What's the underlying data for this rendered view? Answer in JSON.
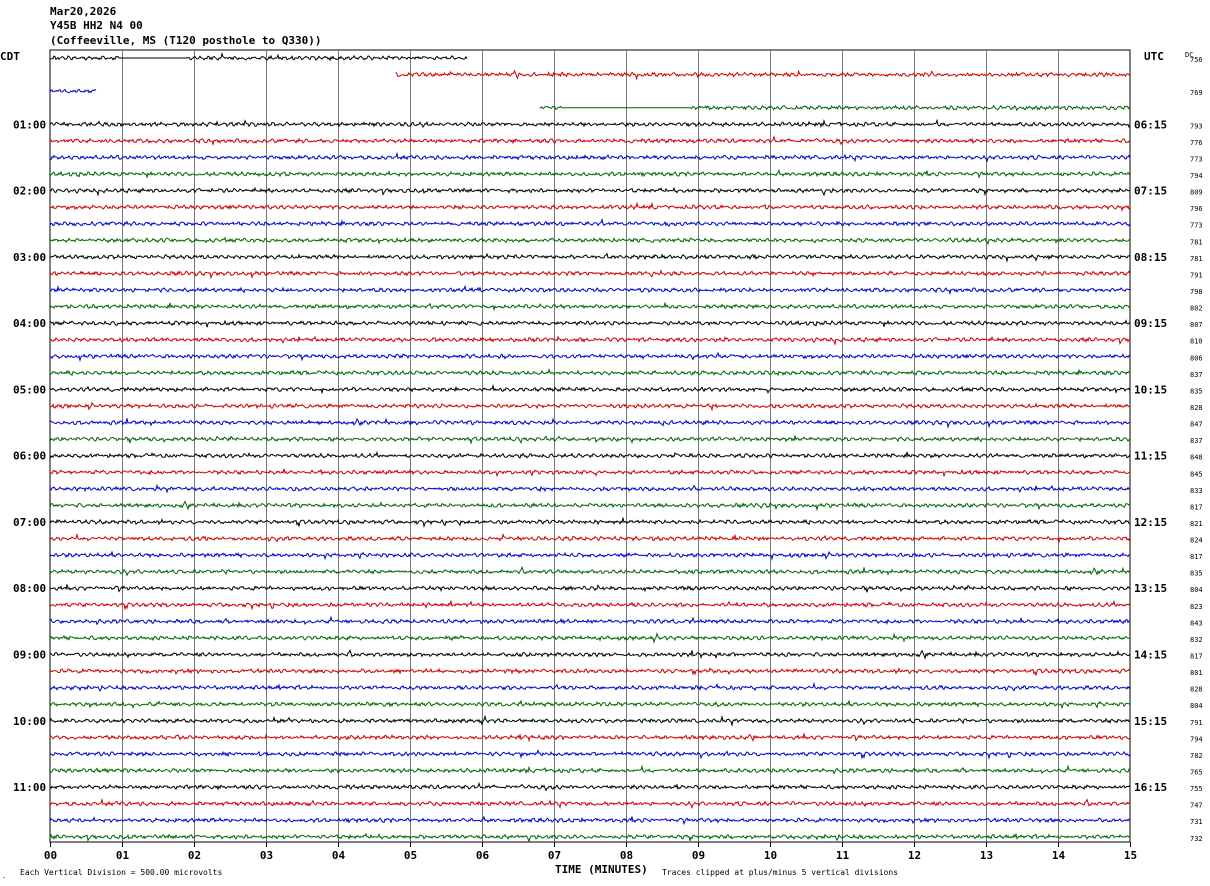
{
  "header": {
    "date": "Mar20,2026",
    "station": "Y45B HH2 N4 00",
    "location": "(Coffeeville, MS (T120 posthole to Q330))"
  },
  "chart_data": {
    "type": "line",
    "left_timezone": "CDT",
    "right_timezone": "UTC",
    "dc_label": "DC",
    "xlabel": "TIME (MINUTES)",
    "xlim": [
      0,
      15
    ],
    "x_ticks": [
      "00",
      "01",
      "02",
      "03",
      "04",
      "05",
      "06",
      "07",
      "08",
      "09",
      "10",
      "11",
      "12",
      "13",
      "14",
      "15"
    ],
    "left_hour_labels": [
      {
        "row": 4,
        "text": "01:00"
      },
      {
        "row": 8,
        "text": "02:00"
      },
      {
        "row": 12,
        "text": "03:00"
      },
      {
        "row": 16,
        "text": "04:00"
      },
      {
        "row": 20,
        "text": "05:00"
      },
      {
        "row": 24,
        "text": "06:00"
      },
      {
        "row": 28,
        "text": "07:00"
      },
      {
        "row": 32,
        "text": "08:00"
      },
      {
        "row": 36,
        "text": "09:00"
      },
      {
        "row": 40,
        "text": "10:00"
      },
      {
        "row": 44,
        "text": "11:00"
      }
    ],
    "right_hour_labels": [
      {
        "row": 4,
        "text": "06:15"
      },
      {
        "row": 8,
        "text": "07:15"
      },
      {
        "row": 12,
        "text": "08:15"
      },
      {
        "row": 16,
        "text": "09:15"
      },
      {
        "row": 20,
        "text": "10:15"
      },
      {
        "row": 24,
        "text": "11:15"
      },
      {
        "row": 28,
        "text": "12:15"
      },
      {
        "row": 32,
        "text": "13:15"
      },
      {
        "row": 36,
        "text": "14:15"
      },
      {
        "row": 40,
        "text": "15:15"
      },
      {
        "row": 44,
        "text": "16:15"
      }
    ],
    "dc_offsets": [
      {
        "row": 0,
        "text": "756"
      },
      {
        "row": 2,
        "text": "769"
      },
      {
        "row": 4,
        "text": "793"
      },
      {
        "row": 5,
        "text": "776"
      },
      {
        "row": 6,
        "text": "773"
      },
      {
        "row": 7,
        "text": "794"
      },
      {
        "row": 8,
        "text": "809"
      },
      {
        "row": 9,
        "text": "796"
      },
      {
        "row": 10,
        "text": "773"
      },
      {
        "row": 11,
        "text": "781"
      },
      {
        "row": 12,
        "text": "781"
      },
      {
        "row": 13,
        "text": "791"
      },
      {
        "row": 14,
        "text": "798"
      },
      {
        "row": 15,
        "text": "802"
      },
      {
        "row": 16,
        "text": "807"
      },
      {
        "row": 17,
        "text": "810"
      },
      {
        "row": 18,
        "text": "806"
      },
      {
        "row": 19,
        "text": "837"
      },
      {
        "row": 20,
        "text": "835"
      },
      {
        "row": 21,
        "text": "828"
      },
      {
        "row": 22,
        "text": "847"
      },
      {
        "row": 23,
        "text": "837"
      },
      {
        "row": 24,
        "text": "848"
      },
      {
        "row": 25,
        "text": "845"
      },
      {
        "row": 26,
        "text": "833"
      },
      {
        "row": 27,
        "text": "817"
      },
      {
        "row": 28,
        "text": "821"
      },
      {
        "row": 29,
        "text": "824"
      },
      {
        "row": 30,
        "text": "817"
      },
      {
        "row": 31,
        "text": "835"
      },
      {
        "row": 32,
        "text": "804"
      },
      {
        "row": 33,
        "text": "823"
      },
      {
        "row": 34,
        "text": "843"
      },
      {
        "row": 35,
        "text": "832"
      },
      {
        "row": 36,
        "text": "817"
      },
      {
        "row": 37,
        "text": "801"
      },
      {
        "row": 38,
        "text": "828"
      },
      {
        "row": 39,
        "text": "804"
      },
      {
        "row": 40,
        "text": "791"
      },
      {
        "row": 41,
        "text": "794"
      },
      {
        "row": 42,
        "text": "782"
      },
      {
        "row": 43,
        "text": "765"
      },
      {
        "row": 44,
        "text": "755"
      },
      {
        "row": 45,
        "text": "747"
      },
      {
        "row": 46,
        "text": "731"
      },
      {
        "row": 47,
        "text": "732"
      }
    ],
    "trace_rows": 48,
    "trace_colors": [
      "#000000",
      "#cc0000",
      "#0000cc",
      "#006600"
    ],
    "partial_traces": [
      {
        "row": 0,
        "start_min": 0.0,
        "end_min": 5.8,
        "flat_segment": [
          0.95,
          1.9
        ]
      },
      {
        "row": 1,
        "start_min": 4.8,
        "end_min": 15.0
      },
      {
        "row": 2,
        "start_min": 0.0,
        "end_min": 0.65
      },
      {
        "row": 3,
        "start_min": 6.8,
        "end_min": 15.0,
        "flat_segment": [
          7.1,
          8.9
        ]
      }
    ],
    "grid": true,
    "footer_scale": "Each Vertical Division =  500.00 microvolts",
    "footer_clip": "Traces clipped at plus/minus 5 vertical divisions"
  }
}
